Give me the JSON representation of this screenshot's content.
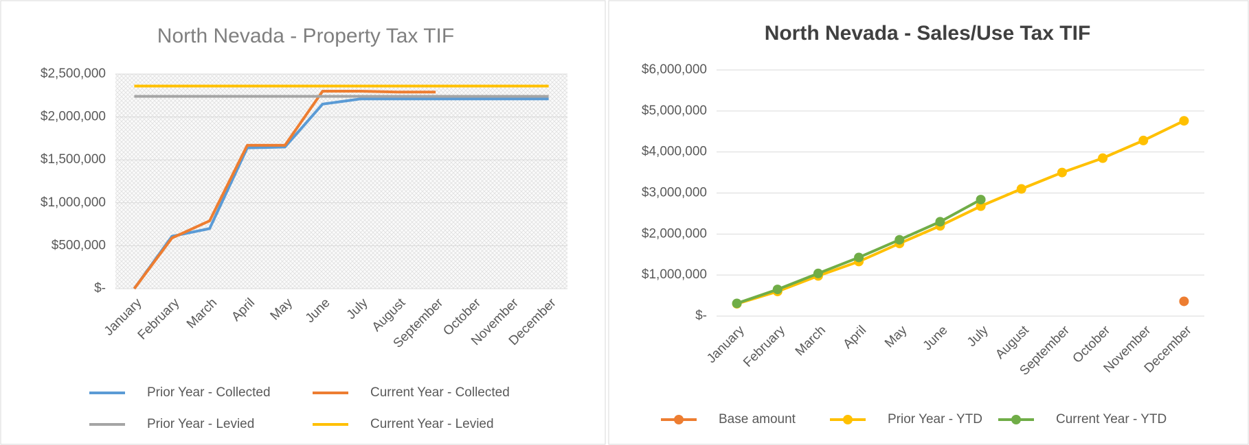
{
  "chart_data": [
    {
      "type": "line",
      "title": "North Nevada - Property Tax TIF",
      "categories": [
        "January",
        "February",
        "March",
        "April",
        "May",
        "June",
        "July",
        "August",
        "September",
        "October",
        "November",
        "December"
      ],
      "series": [
        {
          "name": "Prior Year - Collected",
          "color": "#5b9bd5",
          "values": [
            0,
            610000,
            700000,
            1640000,
            1650000,
            2150000,
            2210000,
            2210000,
            2210000,
            2210000,
            2210000,
            2210000
          ]
        },
        {
          "name": "Current Year - Collected",
          "color": "#ed7d31",
          "values": [
            0,
            590000,
            790000,
            1670000,
            1670000,
            2300000,
            2300000,
            2290000,
            2290000,
            null,
            null,
            null
          ]
        },
        {
          "name": "Prior Year - Levied",
          "color": "#a5a5a5",
          "values": [
            2240000,
            2240000,
            2240000,
            2240000,
            2240000,
            2240000,
            2240000,
            2240000,
            2240000,
            2240000,
            2240000,
            2240000
          ]
        },
        {
          "name": "Current Year - Levied",
          "color": "#ffc000",
          "values": [
            2360000,
            2360000,
            2360000,
            2360000,
            2360000,
            2360000,
            2360000,
            2360000,
            2360000,
            2360000,
            2360000,
            2360000
          ]
        }
      ],
      "ylim": [
        0,
        2500000
      ],
      "yticks": [
        {
          "value": 0,
          "label": "$-"
        },
        {
          "value": 500000,
          "label": "$500,000"
        },
        {
          "value": 1000000,
          "label": "$1,000,000"
        },
        {
          "value": 1500000,
          "label": "$1,500,000"
        },
        {
          "value": 2000000,
          "label": "$2,000,000"
        },
        {
          "value": 2500000,
          "label": "$2,500,000"
        }
      ],
      "grid": true,
      "markers": false,
      "legend": "bottom"
    },
    {
      "type": "line",
      "title": "North Nevada - Sales/Use Tax TIF",
      "categories": [
        "January",
        "February",
        "March",
        "April",
        "May",
        "June",
        "July",
        "August",
        "September",
        "October",
        "November",
        "December"
      ],
      "series": [
        {
          "name": "Base amount",
          "color": "#ed7d31",
          "values": [
            null,
            null,
            null,
            null,
            null,
            null,
            null,
            null,
            null,
            null,
            null,
            360000
          ]
        },
        {
          "name": "Prior Year - YTD",
          "color": "#ffc000",
          "values": [
            300000,
            600000,
            980000,
            1330000,
            1770000,
            2200000,
            2680000,
            3100000,
            3500000,
            3850000,
            4280000,
            4760000
          ]
        },
        {
          "name": "Current Year - YTD",
          "color": "#70ad47",
          "values": [
            310000,
            650000,
            1040000,
            1430000,
            1860000,
            2300000,
            2840000,
            null,
            null,
            null,
            null,
            null
          ]
        }
      ],
      "ylim": [
        0,
        6000000
      ],
      "yticks": [
        {
          "value": 0,
          "label": "$-"
        },
        {
          "value": 1000000,
          "label": "$1,000,000"
        },
        {
          "value": 2000000,
          "label": "$2,000,000"
        },
        {
          "value": 3000000,
          "label": "$3,000,000"
        },
        {
          "value": 4000000,
          "label": "$4,000,000"
        },
        {
          "value": 5000000,
          "label": "$5,000,000"
        },
        {
          "value": 6000000,
          "label": "$6,000,000"
        }
      ],
      "grid": true,
      "markers": true,
      "legend": "bottom"
    }
  ]
}
